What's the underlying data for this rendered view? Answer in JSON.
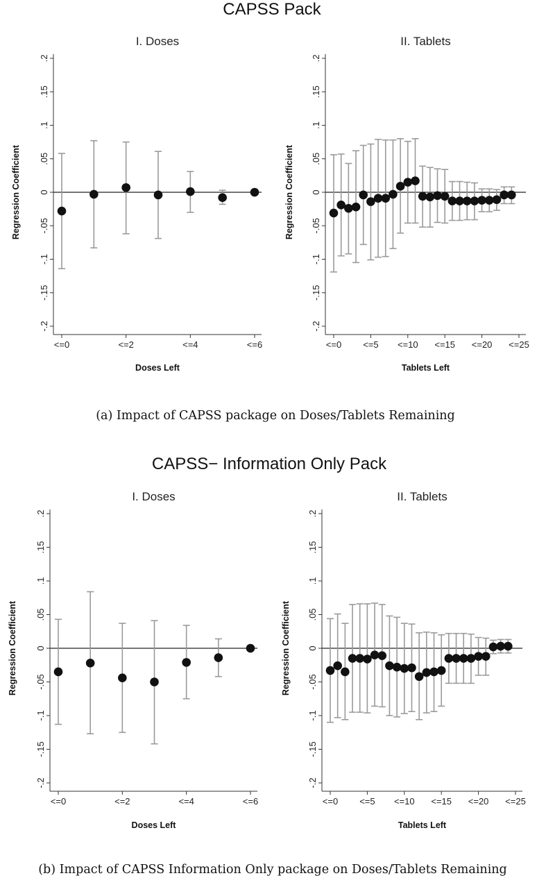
{
  "figures": [
    {
      "title": "CAPSS Pack",
      "caption": "(a) Impact of CAPSS package on Doses/Tablets Remaining"
    },
    {
      "title": "CAPSS− Information Only Pack",
      "caption": "(b) Impact of CAPSS Information Only package on Doses/Tablets Remaining"
    }
  ],
  "colors": {
    "point": "#111111",
    "ci": "#9a9a9a",
    "axis": "#333333",
    "zero_line": "#222222"
  },
  "chart_data": [
    {
      "type": "scatter",
      "title": "I. Doses",
      "xlabel": "Doses Left",
      "ylabel": "Regression Coefficient",
      "xlim": [
        0,
        6
      ],
      "ylim": [
        -0.2,
        0.2
      ],
      "xticks": [
        0,
        2,
        4,
        6
      ],
      "xtick_labels": [
        "<=0",
        "<=2",
        "<=4",
        "<=6"
      ],
      "yticks": [
        -0.2,
        -0.15,
        -0.1,
        -0.05,
        0,
        0.05,
        0.1,
        0.15,
        0.2
      ],
      "ytick_labels": [
        "-.2",
        "-.15",
        "-.1",
        "-.05",
        "0",
        ".05",
        ".1",
        ".15",
        ".2"
      ],
      "reference_line": 0,
      "x": [
        0,
        1,
        2,
        3,
        4,
        5,
        6
      ],
      "y": [
        -0.028,
        -0.003,
        0.007,
        -0.004,
        0.001,
        -0.008,
        0.0
      ],
      "ci_low": [
        -0.114,
        -0.083,
        -0.062,
        -0.069,
        -0.03,
        -0.018,
        0.0
      ],
      "ci_high": [
        0.058,
        0.077,
        0.075,
        0.061,
        0.031,
        0.003,
        0.0
      ]
    },
    {
      "type": "scatter",
      "title": "II. Tablets",
      "xlabel": "Tablets Left",
      "ylabel": "Regression Coefficient",
      "xlim": [
        0,
        25
      ],
      "ylim": [
        -0.2,
        0.2
      ],
      "xticks": [
        0,
        5,
        10,
        15,
        20,
        25
      ],
      "xtick_labels": [
        "<=0",
        "<=5",
        "<=10",
        "<=15",
        "<=20",
        "<=25"
      ],
      "yticks": [
        -0.2,
        -0.15,
        -0.1,
        -0.05,
        0,
        0.05,
        0.1,
        0.15,
        0.2
      ],
      "ytick_labels": [
        "-.2",
        "-.15",
        "-.1",
        "-.05",
        "0",
        ".05",
        ".1",
        ".15",
        ".2"
      ],
      "reference_line": 0,
      "x": [
        0,
        1,
        2,
        3,
        4,
        5,
        6,
        7,
        8,
        9,
        10,
        11,
        12,
        13,
        14,
        15,
        16,
        17,
        18,
        19,
        20,
        21,
        22,
        23,
        24
      ],
      "y": [
        -0.031,
        -0.019,
        -0.024,
        -0.022,
        -0.004,
        -0.014,
        -0.009,
        -0.009,
        -0.003,
        0.009,
        0.015,
        0.017,
        -0.006,
        -0.007,
        -0.005,
        -0.006,
        -0.013,
        -0.013,
        -0.013,
        -0.013,
        -0.012,
        -0.012,
        -0.011,
        -0.004,
        -0.004
      ],
      "ci_low": [
        -0.119,
        -0.095,
        -0.092,
        -0.105,
        -0.078,
        -0.101,
        -0.097,
        -0.096,
        -0.084,
        -0.061,
        -0.046,
        -0.046,
        -0.052,
        -0.052,
        -0.045,
        -0.046,
        -0.042,
        -0.042,
        -0.041,
        -0.041,
        -0.029,
        -0.029,
        -0.027,
        -0.017,
        -0.017
      ],
      "ci_high": [
        0.056,
        0.057,
        0.043,
        0.062,
        0.07,
        0.072,
        0.079,
        0.078,
        0.078,
        0.08,
        0.076,
        0.08,
        0.039,
        0.037,
        0.035,
        0.034,
        0.016,
        0.016,
        0.015,
        0.014,
        0.005,
        0.005,
        0.004,
        0.008,
        0.008
      ]
    },
    {
      "type": "scatter",
      "title": "I. Doses",
      "xlabel": "Doses Left",
      "ylabel": "Regression Coefficient",
      "xlim": [
        0,
        6
      ],
      "ylim": [
        -0.2,
        0.2
      ],
      "xticks": [
        0,
        2,
        4,
        6
      ],
      "xtick_labels": [
        "<=0",
        "<=2",
        "<=4",
        "<=6"
      ],
      "yticks": [
        -0.2,
        -0.15,
        -0.1,
        -0.05,
        0,
        0.05,
        0.1,
        0.15,
        0.2
      ],
      "ytick_labels": [
        "-.2",
        "-.15",
        "-.1",
        "-.05",
        "0",
        ".05",
        ".1",
        ".15",
        ".2"
      ],
      "reference_line": 0,
      "x": [
        0,
        1,
        2,
        3,
        4,
        5,
        6
      ],
      "y": [
        -0.035,
        -0.022,
        -0.044,
        -0.05,
        -0.021,
        -0.014,
        0.0
      ],
      "ci_low": [
        -0.113,
        -0.127,
        -0.125,
        -0.142,
        -0.075,
        -0.042,
        0.0
      ],
      "ci_high": [
        0.043,
        0.084,
        0.037,
        0.041,
        0.034,
        0.014,
        0.0
      ]
    },
    {
      "type": "scatter",
      "title": "II. Tablets",
      "xlabel": "Tablets Left",
      "ylabel": "Regression Coefficient",
      "xlim": [
        0,
        25
      ],
      "ylim": [
        -0.2,
        0.2
      ],
      "xticks": [
        0,
        5,
        10,
        15,
        20,
        25
      ],
      "xtick_labels": [
        "<=0",
        "<=5",
        "<=10",
        "<=15",
        "<=20",
        "<=25"
      ],
      "yticks": [
        -0.2,
        -0.15,
        -0.1,
        -0.05,
        0,
        0.05,
        0.1,
        0.15,
        0.2
      ],
      "ytick_labels": [
        "-.2",
        "-.15",
        "-.1",
        "-.05",
        "0",
        ".05",
        ".1",
        ".15",
        ".2"
      ],
      "reference_line": 0,
      "x": [
        0,
        1,
        2,
        3,
        4,
        5,
        6,
        7,
        8,
        9,
        10,
        11,
        12,
        13,
        14,
        15,
        16,
        17,
        18,
        19,
        20,
        21,
        22,
        23,
        24
      ],
      "y": [
        -0.033,
        -0.026,
        -0.035,
        -0.015,
        -0.015,
        -0.016,
        -0.01,
        -0.011,
        -0.026,
        -0.028,
        -0.03,
        -0.029,
        -0.042,
        -0.036,
        -0.035,
        -0.033,
        -0.015,
        -0.015,
        -0.015,
        -0.015,
        -0.012,
        -0.012,
        0.002,
        0.003,
        0.003
      ],
      "ci_low": [
        -0.11,
        -0.103,
        -0.106,
        -0.095,
        -0.095,
        -0.096,
        -0.086,
        -0.087,
        -0.1,
        -0.102,
        -0.097,
        -0.094,
        -0.106,
        -0.096,
        -0.094,
        -0.086,
        -0.052,
        -0.052,
        -0.052,
        -0.052,
        -0.04,
        -0.04,
        -0.008,
        -0.007,
        -0.007
      ],
      "ci_high": [
        0.044,
        0.051,
        0.037,
        0.065,
        0.066,
        0.066,
        0.067,
        0.065,
        0.048,
        0.046,
        0.037,
        0.036,
        0.023,
        0.024,
        0.023,
        0.02,
        0.022,
        0.022,
        0.022,
        0.021,
        0.016,
        0.015,
        0.012,
        0.013,
        0.013
      ]
    }
  ]
}
